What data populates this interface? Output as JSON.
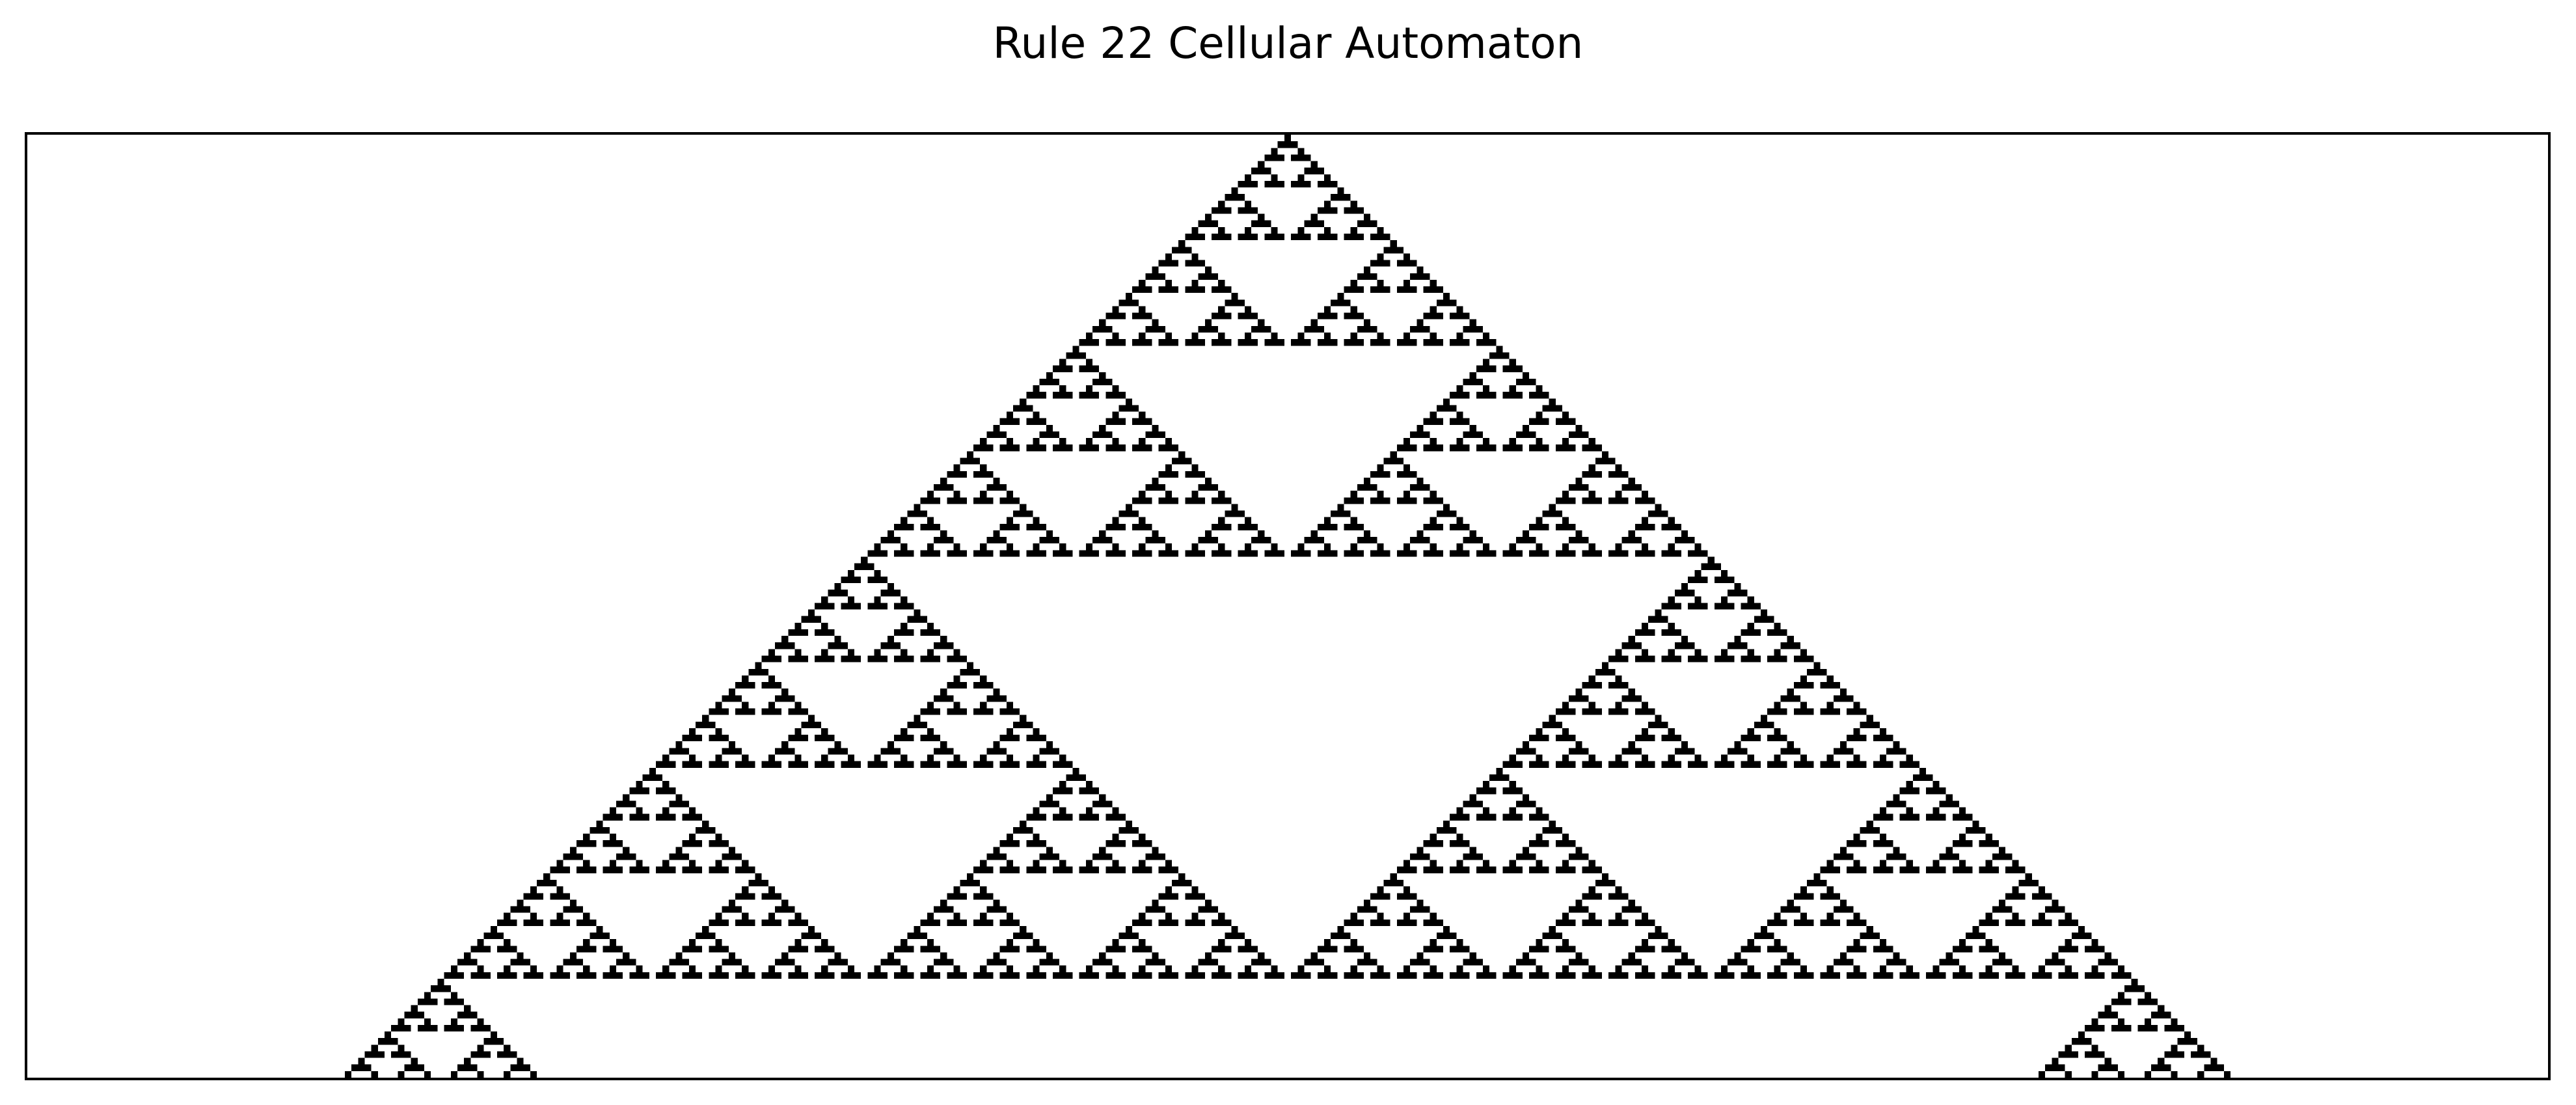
{
  "chart_data": {
    "type": "heatmap",
    "title": "Rule 22 Cellular Automaton",
    "rule": 22,
    "initial_condition": "single live cell in the center",
    "grid": {
      "columns": 381,
      "generations": 143
    },
    "colors": {
      "alive": "#000000",
      "dead": "#ffffff",
      "frame": "#000000"
    },
    "axes_visible": false,
    "grid_lines": false,
    "legend": "none"
  }
}
